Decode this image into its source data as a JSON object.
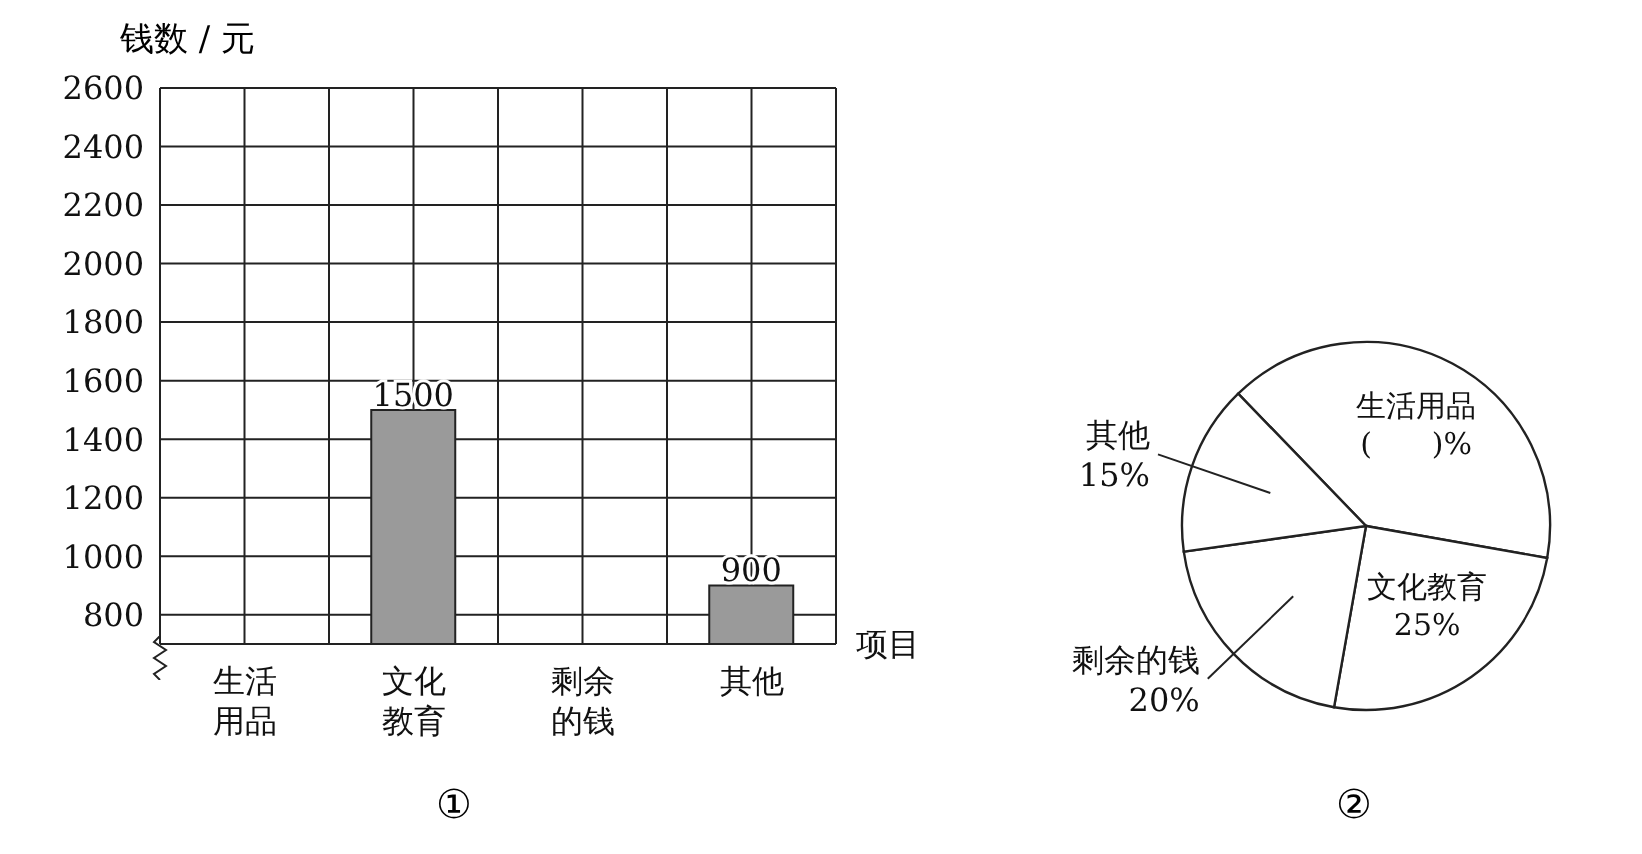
{
  "chart_data": [
    {
      "type": "bar",
      "xlabel": "项目",
      "ylabel": "钱数 / 元",
      "categories": [
        "生活用品",
        "文化教育",
        "剩余的钱",
        "其他"
      ],
      "values": [
        null,
        1500,
        null,
        900
      ],
      "color": "#9a9a9a",
      "ylim": [
        700,
        2600
      ],
      "yticks": [
        800,
        1000,
        1200,
        1400,
        1600,
        1800,
        2000,
        2200,
        2400,
        2600
      ],
      "grid": true,
      "data_labels": true,
      "annotations": [
        "①"
      ]
    },
    {
      "type": "pie",
      "categories": [
        "生活用品",
        "文化教育",
        "剩余的钱",
        "其他"
      ],
      "values": [
        40,
        25,
        20,
        15
      ],
      "colors": [
        "#ffffff",
        "#ffffff",
        "#ffffff",
        "#ffffff"
      ],
      "value_labels": [
        "(　　)%",
        "25%",
        "20%",
        "15%"
      ],
      "annotations": [
        "②"
      ]
    }
  ]
}
